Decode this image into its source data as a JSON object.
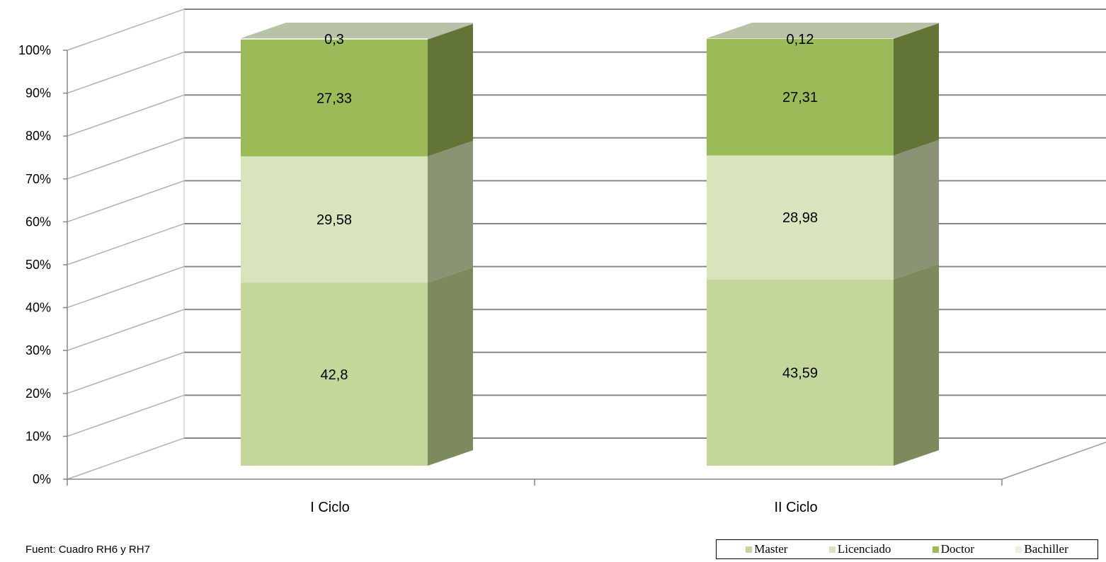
{
  "chart_data": {
    "type": "bar",
    "stacked": true,
    "percent": true,
    "three_d": true,
    "categories": [
      "I Ciclo",
      "II Ciclo"
    ],
    "series": [
      {
        "name": "Master",
        "values": [
          42.8,
          43.59
        ],
        "labels": [
          "42,8",
          "43,59"
        ],
        "color": "#c4d79b",
        "side_color": "#7d8a5e"
      },
      {
        "name": "Licenciado",
        "values": [
          29.58,
          28.98
        ],
        "labels": [
          "29,58",
          "28,98"
        ],
        "color": "#d8e4bc",
        "side_color": "#8a9474"
      },
      {
        "name": "Doctor",
        "values": [
          27.33,
          27.31
        ],
        "labels": [
          "27,33",
          "27,31"
        ],
        "color": "#9bbb59",
        "side_color": "#627537"
      },
      {
        "name": "Bachiller",
        "values": [
          0.3,
          0.12
        ],
        "labels": [
          "0,3",
          "0,12"
        ],
        "color": "#ebf1de",
        "side_color": "#b5b9a5"
      }
    ],
    "yticks": [
      "0%",
      "10%",
      "20%",
      "30%",
      "40%",
      "50%",
      "60%",
      "70%",
      "80%",
      "90%",
      "100%"
    ],
    "ylim": [
      0,
      100
    ],
    "grid": true,
    "legend_position": "bottom-right",
    "xlabel": "",
    "ylabel": ""
  },
  "note": "Fuent: Cuadro RH6 y RH7",
  "legend": [
    "Master",
    "Licenciado",
    "Doctor",
    "Bachiller"
  ]
}
